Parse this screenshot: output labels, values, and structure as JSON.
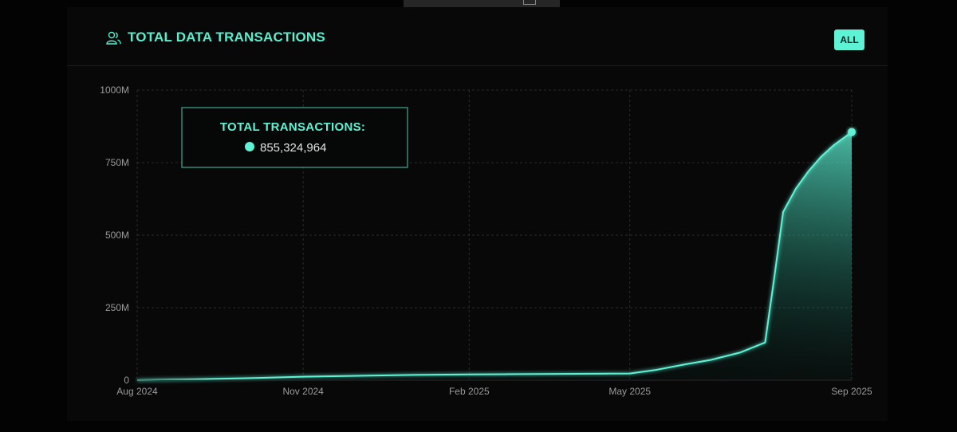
{
  "panel": {
    "title": "TOTAL DATA TRANSACTIONS",
    "filter_button_label": "ALL",
    "header_icon": "users-icon",
    "accent_color": "#5ff3d6"
  },
  "chart_data": {
    "type": "area",
    "title": "TOTAL DATA TRANSACTIONS",
    "xlabel": "",
    "ylabel": "",
    "x": [
      "2024-08-01",
      "2024-09-01",
      "2024-10-01",
      "2024-11-01",
      "2024-12-01",
      "2025-01-01",
      "2025-02-01",
      "2025-03-01",
      "2025-04-01",
      "2025-05-01",
      "2025-05-15",
      "2025-06-01",
      "2025-06-15",
      "2025-07-01",
      "2025-07-15",
      "2025-07-20",
      "2025-07-25",
      "2025-08-01",
      "2025-08-08",
      "2025-08-15",
      "2025-08-22",
      "2025-09-01"
    ],
    "series": [
      {
        "values": [
          0,
          3000000,
          7000000,
          12000000,
          15000000,
          18000000,
          20000000,
          21000000,
          22000000,
          23000000,
          35000000,
          55000000,
          70000000,
          95000000,
          130000000,
          350000000,
          580000000,
          660000000,
          720000000,
          770000000,
          810000000,
          855324964
        ]
      }
    ],
    "x_ticks": [
      "Aug 2024",
      "Nov 2024",
      "Feb 2025",
      "May 2025",
      "Sep 2025"
    ],
    "y_ticks": [
      "0",
      "250M",
      "500M",
      "750M",
      "1000M"
    ],
    "ylim": [
      0,
      1000000000
    ],
    "xlim": [
      "2024-08-01",
      "2025-09-01"
    ],
    "grid": true,
    "tooltip": {
      "label": "TOTAL TRANSACTIONS:",
      "value": "855,324,964"
    },
    "line_color": "#5ff3d6"
  }
}
